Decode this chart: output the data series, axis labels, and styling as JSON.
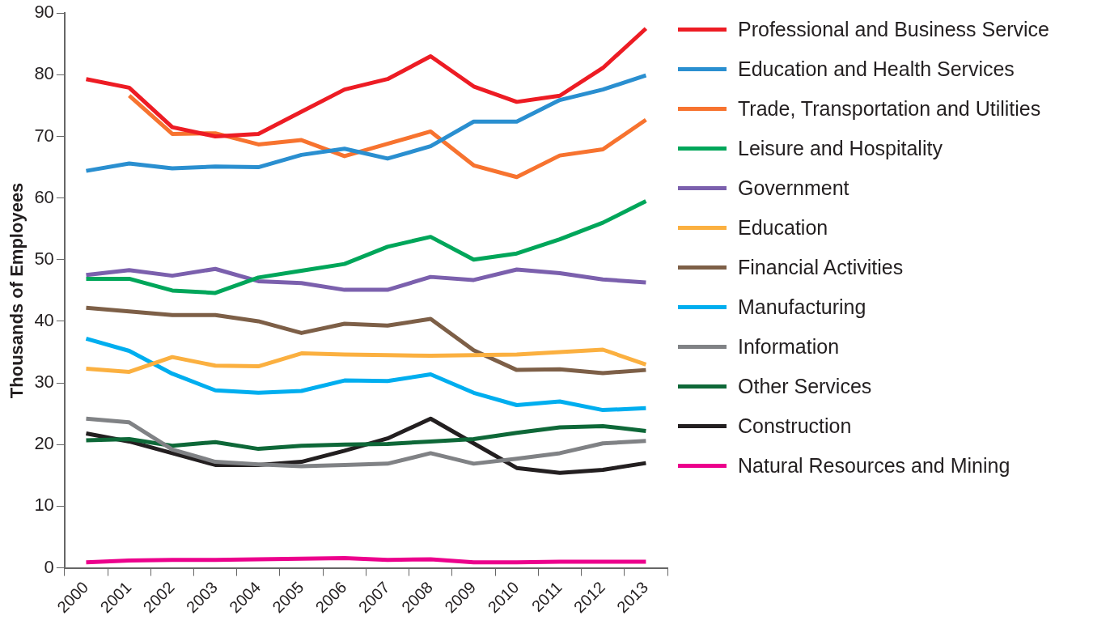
{
  "chart_data": {
    "type": "line",
    "ylabel": "Thousands of Employees",
    "categories": [
      "2000",
      "2001",
      "2002",
      "2003",
      "2004",
      "2005",
      "2006",
      "2007",
      "2008",
      "2009",
      "2010",
      "2011",
      "2012",
      "2013"
    ],
    "ylim": [
      0,
      90
    ],
    "yticks": [
      0,
      10,
      20,
      30,
      40,
      50,
      60,
      70,
      80,
      90
    ],
    "grid": false,
    "legend": "right",
    "marker": "none",
    "series": [
      {
        "name": "Professional and Business Service",
        "color": "#ed1c24",
        "values": [
          79.3,
          77.9,
          71.5,
          70.0,
          70.4,
          74.0,
          77.6,
          79.3,
          83.0,
          78.1,
          75.6,
          76.6,
          81.1,
          87.5
        ]
      },
      {
        "name": "Education and Health Services",
        "color": "#2a8fd0",
        "values": [
          64.4,
          65.6,
          64.8,
          65.1,
          65.0,
          67.0,
          68.0,
          66.4,
          68.4,
          72.4,
          72.4,
          75.9,
          77.6,
          79.9
        ]
      },
      {
        "name": "Trade, Transportation and Utilities",
        "color": "#f7732f",
        "values": [
          null,
          76.6,
          70.4,
          70.5,
          68.7,
          69.4,
          66.8,
          68.8,
          70.8,
          65.3,
          63.4,
          66.9,
          67.9,
          72.7
        ]
      },
      {
        "name": "Leisure and Hospitality",
        "color": "#00a65a",
        "values": [
          46.9,
          46.9,
          45.0,
          44.6,
          47.1,
          48.2,
          49.3,
          52.1,
          53.7,
          50.0,
          51.0,
          53.3,
          56.0,
          59.5
        ]
      },
      {
        "name": "Government",
        "color": "#7b60ad",
        "values": [
          47.5,
          48.3,
          47.4,
          48.5,
          46.5,
          46.2,
          45.1,
          45.1,
          47.2,
          46.7,
          48.4,
          47.8,
          46.8,
          46.3
        ]
      },
      {
        "name": "Education",
        "color": "#fbb040",
        "values": [
          32.3,
          31.8,
          34.2,
          32.8,
          32.7,
          34.8,
          34.6,
          34.5,
          34.4,
          34.5,
          34.6,
          35.0,
          35.4,
          33.0
        ]
      },
      {
        "name": "Financial Activities",
        "color": "#7d5f47",
        "values": [
          42.2,
          41.6,
          41.0,
          41.0,
          40.0,
          38.1,
          39.6,
          39.3,
          40.4,
          35.3,
          32.1,
          32.2,
          31.6,
          32.1
        ]
      },
      {
        "name": "Manufacturing",
        "color": "#00aeef",
        "values": [
          37.2,
          35.2,
          31.5,
          28.8,
          28.4,
          28.7,
          30.4,
          30.3,
          31.4,
          28.4,
          26.4,
          27.0,
          25.6,
          25.9
        ]
      },
      {
        "name": "Information",
        "color": "#808285",
        "values": [
          24.2,
          23.6,
          19.2,
          17.2,
          16.8,
          16.5,
          16.7,
          16.9,
          18.6,
          16.9,
          17.7,
          18.6,
          20.2,
          20.6
        ]
      },
      {
        "name": "Other Services",
        "color": "#0e6838",
        "values": [
          20.7,
          20.9,
          19.8,
          20.4,
          19.3,
          19.8,
          20.0,
          20.1,
          20.5,
          20.9,
          21.9,
          22.8,
          23.0,
          22.2
        ]
      },
      {
        "name": "Construction",
        "color": "#231f20",
        "values": [
          21.8,
          20.5,
          18.6,
          16.7,
          16.7,
          17.2,
          19.0,
          21.0,
          24.2,
          20.2,
          16.2,
          15.4,
          15.9,
          17.0
        ]
      },
      {
        "name": "Natural Resources and Mining",
        "color": "#ec008c",
        "values": [
          0.9,
          1.2,
          1.3,
          1.3,
          1.4,
          1.5,
          1.6,
          1.3,
          1.4,
          0.9,
          0.9,
          1.0,
          1.0,
          1.0
        ]
      }
    ]
  }
}
